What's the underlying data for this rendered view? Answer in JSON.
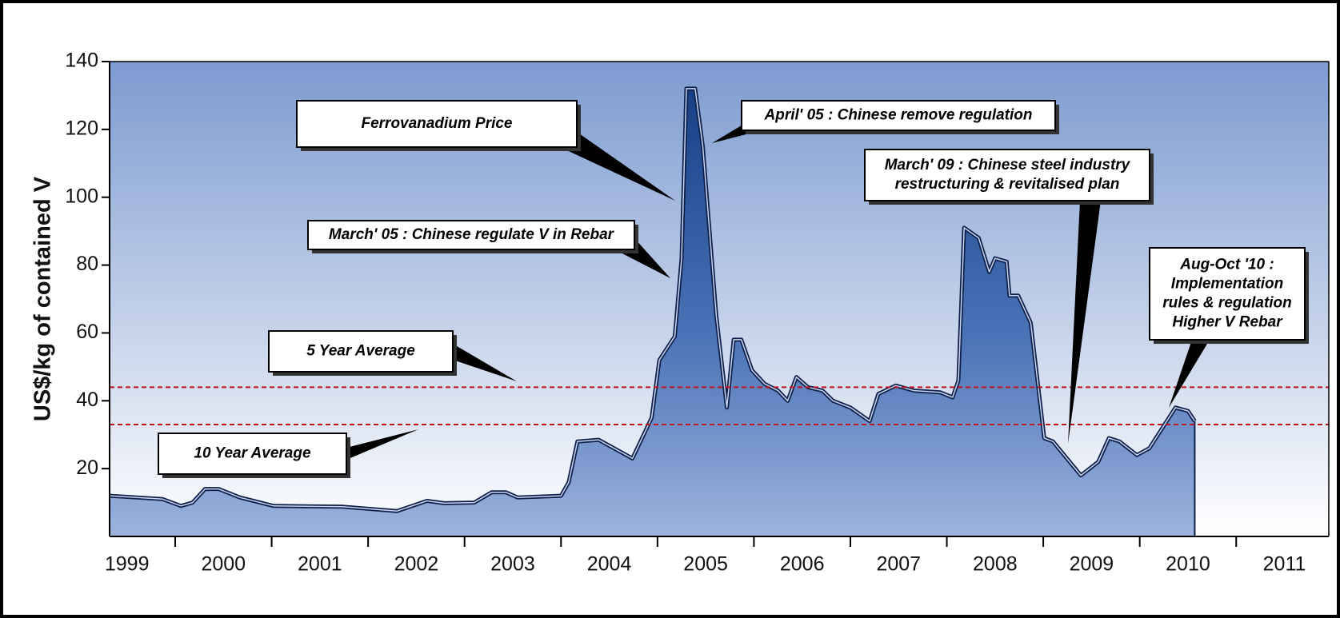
{
  "chart_data": {
    "type": "area",
    "title": "Ferrovanadium Price",
    "y_label": "US$/kg of contained V",
    "color": "#2a5597",
    "x": [
      1999.32,
      1999.87,
      2000.06,
      2000.18,
      2000.31,
      2000.45,
      2000.67,
      2001.02,
      2001.73,
      2002.08,
      2002.3,
      2002.61,
      2002.79,
      2003.1,
      2003.28,
      2003.43,
      2003.55,
      2004.0,
      2004.08,
      2004.17,
      2004.39,
      2004.74,
      2004.94,
      2005.02,
      2005.18,
      2005.25,
      2005.3,
      2005.39,
      2005.47,
      2005.61,
      2005.72,
      2005.79,
      2005.87,
      2005.98,
      2006.11,
      2006.25,
      2006.35,
      2006.44,
      2006.56,
      2006.71,
      2006.82,
      2007.0,
      2007.2,
      2007.29,
      2007.47,
      2007.66,
      2007.93,
      2008.06,
      2008.12,
      2008.18,
      2008.33,
      2008.44,
      2008.5,
      2008.62,
      2008.65,
      2008.74,
      2008.87,
      2009.01,
      2009.1,
      2009.39,
      2009.57,
      2009.68,
      2009.79,
      2009.97,
      2010.1,
      2010.37,
      2010.5,
      2010.57
    ],
    "values": [
      12,
      11,
      9,
      10,
      14,
      14,
      11.5,
      9,
      8.8,
      8,
      7.5,
      10.5,
      9.8,
      10,
      13,
      13,
      11.5,
      12,
      16,
      28,
      28.5,
      23,
      35,
      52,
      59,
      82,
      132,
      132,
      115,
      65,
      38,
      58,
      58,
      49,
      45,
      43,
      40,
      47,
      44,
      43,
      40,
      38,
      34,
      42,
      44.5,
      43,
      42.5,
      41,
      46,
      91,
      88,
      78,
      82,
      81,
      71,
      71,
      63,
      29,
      28,
      18,
      22,
      29,
      28,
      24,
      26,
      38,
      37,
      34
    ],
    "xlim": [
      1999.32,
      2011.96
    ],
    "ylim": [
      0,
      140
    ],
    "yticks": [
      20,
      40,
      60,
      80,
      100,
      120,
      140
    ],
    "xticks": [
      2000,
      2001,
      2002,
      2003,
      2004,
      2005,
      2006,
      2007,
      2008,
      2009,
      2010,
      2011
    ],
    "xtick_labels": [
      {
        "value": 1999.5,
        "label": "1999"
      },
      {
        "value": 2000.5,
        "label": "2000"
      },
      {
        "value": 2001.5,
        "label": "2001"
      },
      {
        "value": 2002.5,
        "label": "2002"
      },
      {
        "value": 2003.5,
        "label": "2003"
      },
      {
        "value": 2004.5,
        "label": "2004"
      },
      {
        "value": 2005.5,
        "label": "2005"
      },
      {
        "value": 2006.5,
        "label": "2006"
      },
      {
        "value": 2007.5,
        "label": "2007"
      },
      {
        "value": 2008.5,
        "label": "2008"
      },
      {
        "value": 2009.5,
        "label": "2009"
      },
      {
        "value": 2010.5,
        "label": "2010"
      },
      {
        "value": 2011.5,
        "label": "2011"
      }
    ],
    "reference_lines": [
      {
        "name": "5 Year Average",
        "value": 44,
        "color": "#c0141c"
      },
      {
        "name": "10 Year Average",
        "value": 33,
        "color": "#c0141c"
      }
    ],
    "annotations": [
      {
        "lines": [
          "April' 05 : Chinese remove regulation"
        ]
      },
      {
        "lines": [
          "March' 05 : Chinese regulate V in Rebar"
        ]
      },
      {
        "lines": [
          "March' 09 : Chinese steel industry",
          "restructuring & revitalised plan"
        ]
      },
      {
        "lines": [
          "Aug-Oct '10 :",
          "Implementation",
          "rules & regulation",
          "Higher V Rebar"
        ]
      }
    ]
  }
}
